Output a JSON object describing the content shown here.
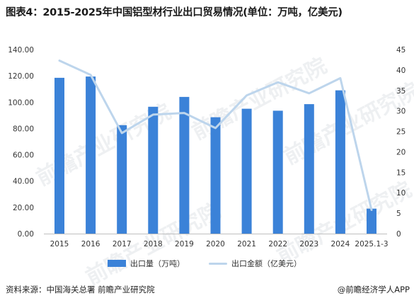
{
  "title": "图表4：2015-2025年中国铝型材行业出口贸易情况(单位：万吨，亿美元)",
  "footer": {
    "source": "资料来源：中国海关总署 前瞻产业研究院",
    "brand": "@前瞻经济学人APP"
  },
  "watermark": "前瞻产业研究院",
  "colors": {
    "bar": "#3b82d8",
    "line": "#bdd5ec",
    "axis_text": "#333333",
    "axis_line": "#bfbfbf"
  },
  "chart_data": {
    "type": "bar",
    "categories": [
      "2015",
      "2016",
      "2017",
      "2018",
      "2019",
      "2020",
      "2021",
      "2022",
      "2023",
      "2024",
      "2025.1-3"
    ],
    "series": [
      {
        "name": "出口量（万吨）",
        "type": "bar",
        "axis": "left",
        "values": [
          118.5,
          119.5,
          82.5,
          96.5,
          104,
          88.5,
          95,
          93.5,
          98.5,
          109,
          19
        ]
      },
      {
        "name": "出口金额（亿美元）",
        "type": "line",
        "axis": "right",
        "values": [
          42.3,
          38.8,
          24.6,
          29.1,
          29.5,
          25.8,
          33.8,
          37,
          34.3,
          38,
          5.8
        ]
      }
    ],
    "y_left": {
      "range": [
        0,
        140
      ],
      "ticks": [
        "0.00",
        "20.00",
        "40.00",
        "60.00",
        "80.00",
        "100.00",
        "120.00",
        "140.00"
      ]
    },
    "y_right": {
      "range": [
        0,
        45
      ],
      "ticks": [
        "0",
        "5",
        "10",
        "15",
        "20",
        "25",
        "30",
        "35",
        "40",
        "45"
      ]
    },
    "grid": false,
    "legend_position": "bottom"
  }
}
